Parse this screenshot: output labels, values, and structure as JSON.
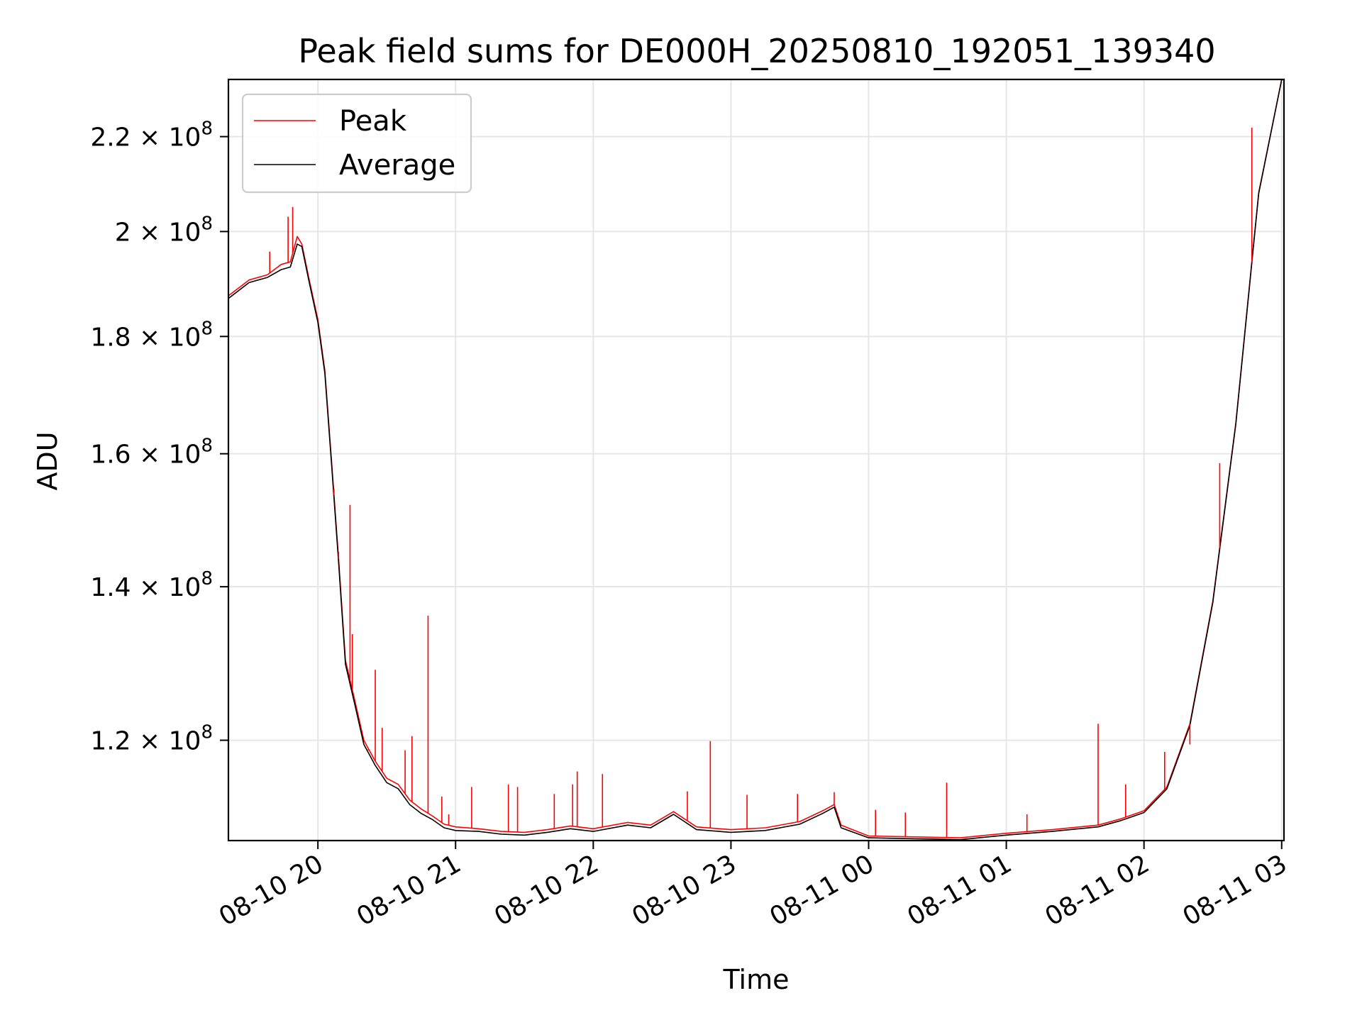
{
  "chart_data": {
    "type": "line",
    "title": "Peak field sums for DE000H_20250810_192051_139340",
    "xlabel": "Time",
    "ylabel": "ADU",
    "y_scale": "log",
    "grid": true,
    "legend_position": "top-left",
    "xlim": [
      "2025-08-10 19:21",
      "2025-08-11 03:01"
    ],
    "ylim": [
      108500000,
      233000000
    ],
    "x_ticks": [
      {
        "value": "2025-08-10 20:00",
        "label": "08-10 20"
      },
      {
        "value": "2025-08-10 21:00",
        "label": "08-10 21"
      },
      {
        "value": "2025-08-10 22:00",
        "label": "08-10 22"
      },
      {
        "value": "2025-08-10 23:00",
        "label": "08-10 23"
      },
      {
        "value": "2025-08-11 00:00",
        "label": "08-11 00"
      },
      {
        "value": "2025-08-11 01:00",
        "label": "08-11 01"
      },
      {
        "value": "2025-08-11 02:00",
        "label": "08-11 02"
      },
      {
        "value": "2025-08-11 03:00",
        "label": "08-11 03"
      }
    ],
    "y_ticks": [
      {
        "value": 120000000,
        "mantissa": "1.2",
        "base": "10",
        "exp": "8"
      },
      {
        "value": 140000000,
        "mantissa": "1.4",
        "base": "10",
        "exp": "8"
      },
      {
        "value": 160000000,
        "mantissa": "1.6",
        "base": "10",
        "exp": "8"
      },
      {
        "value": 180000000,
        "mantissa": "1.8",
        "base": "10",
        "exp": "8"
      },
      {
        "value": 200000000,
        "mantissa": "2",
        "base": "10",
        "exp": "8"
      },
      {
        "value": 220000000,
        "mantissa": "2.2",
        "base": "10",
        "exp": "8"
      }
    ],
    "series": [
      {
        "name": "Peak",
        "color": "#ff0000",
        "points": [
          [
            "2025-08-10 19:21",
            187500000
          ],
          [
            "2025-08-10 19:30",
            190500000
          ],
          [
            "2025-08-10 19:38",
            191500000
          ],
          [
            "2025-08-10 19:44",
            193500000
          ],
          [
            "2025-08-10 19:48",
            194000000
          ],
          [
            "2025-08-10 19:51",
            199000000
          ],
          [
            "2025-08-10 19:53",
            197500000
          ],
          [
            "2025-08-10 19:56",
            191000000
          ],
          [
            "2025-08-10 20:00",
            183000000
          ],
          [
            "2025-08-10 20:03",
            174000000
          ],
          [
            "2025-08-10 20:06",
            158500000
          ],
          [
            "2025-08-10 20:09",
            144000000
          ],
          [
            "2025-08-10 20:12",
            130000000
          ],
          [
            "2025-08-10 20:16",
            125000000
          ],
          [
            "2025-08-10 20:20",
            120000000
          ],
          [
            "2025-08-10 20:25",
            117500000
          ],
          [
            "2025-08-10 20:30",
            115500000
          ],
          [
            "2025-08-10 20:35",
            114800000
          ],
          [
            "2025-08-10 20:40",
            113000000
          ],
          [
            "2025-08-10 20:45",
            112000000
          ],
          [
            "2025-08-10 20:50",
            111200000
          ],
          [
            "2025-08-10 20:55",
            110300000
          ],
          [
            "2025-08-10 21:00",
            110000000
          ],
          [
            "2025-08-10 21:10",
            109800000
          ],
          [
            "2025-08-10 21:20",
            109500000
          ],
          [
            "2025-08-10 21:30",
            109400000
          ],
          [
            "2025-08-10 21:40",
            109700000
          ],
          [
            "2025-08-10 21:50",
            110100000
          ],
          [
            "2025-08-10 22:00",
            109800000
          ],
          [
            "2025-08-10 22:15",
            110500000
          ],
          [
            "2025-08-10 22:25",
            110200000
          ],
          [
            "2025-08-10 22:35",
            111700000
          ],
          [
            "2025-08-10 22:45",
            110000000
          ],
          [
            "2025-08-10 23:00",
            109700000
          ],
          [
            "2025-08-10 23:15",
            109900000
          ],
          [
            "2025-08-10 23:30",
            110600000
          ],
          [
            "2025-08-10 23:40",
            111800000
          ],
          [
            "2025-08-10 23:45",
            112500000
          ],
          [
            "2025-08-10 23:48",
            110200000
          ],
          [
            "2025-08-11 00:00",
            109000000
          ],
          [
            "2025-08-11 00:20",
            108900000
          ],
          [
            "2025-08-11 00:40",
            108800000
          ],
          [
            "2025-08-11 01:00",
            109300000
          ],
          [
            "2025-08-11 01:20",
            109700000
          ],
          [
            "2025-08-11 01:40",
            110200000
          ],
          [
            "2025-08-11 01:50",
            110900000
          ],
          [
            "2025-08-11 02:00",
            111800000
          ],
          [
            "2025-08-11 02:10",
            114500000
          ],
          [
            "2025-08-11 02:20",
            122000000
          ],
          [
            "2025-08-11 02:30",
            138000000
          ],
          [
            "2025-08-11 02:40",
            165000000
          ],
          [
            "2025-08-11 02:50",
            208000000
          ],
          [
            "2025-08-11 03:00",
            233000000
          ]
        ]
      },
      {
        "name": "Average",
        "color": "#000000",
        "points": [
          [
            "2025-08-10 19:21",
            187000000
          ],
          [
            "2025-08-10 19:30",
            190000000
          ],
          [
            "2025-08-10 19:38",
            191000000
          ],
          [
            "2025-08-10 19:44",
            192500000
          ],
          [
            "2025-08-10 19:48",
            193000000
          ],
          [
            "2025-08-10 19:51",
            197500000
          ],
          [
            "2025-08-10 19:53",
            197000000
          ],
          [
            "2025-08-10 19:56",
            190500000
          ],
          [
            "2025-08-10 20:00",
            182500000
          ],
          [
            "2025-08-10 20:03",
            173500000
          ],
          [
            "2025-08-10 20:06",
            158000000
          ],
          [
            "2025-08-10 20:09",
            143500000
          ],
          [
            "2025-08-10 20:12",
            129500000
          ],
          [
            "2025-08-10 20:16",
            124500000
          ],
          [
            "2025-08-10 20:20",
            119500000
          ],
          [
            "2025-08-10 20:25",
            117000000
          ],
          [
            "2025-08-10 20:30",
            115000000
          ],
          [
            "2025-08-10 20:35",
            114300000
          ],
          [
            "2025-08-10 20:40",
            112500000
          ],
          [
            "2025-08-10 20:45",
            111500000
          ],
          [
            "2025-08-10 20:50",
            110800000
          ],
          [
            "2025-08-10 20:55",
            109900000
          ],
          [
            "2025-08-10 21:00",
            109600000
          ],
          [
            "2025-08-10 21:10",
            109500000
          ],
          [
            "2025-08-10 21:20",
            109200000
          ],
          [
            "2025-08-10 21:30",
            109100000
          ],
          [
            "2025-08-10 21:40",
            109400000
          ],
          [
            "2025-08-10 21:50",
            109800000
          ],
          [
            "2025-08-10 22:00",
            109500000
          ],
          [
            "2025-08-10 22:15",
            110200000
          ],
          [
            "2025-08-10 22:25",
            109900000
          ],
          [
            "2025-08-10 22:35",
            111400000
          ],
          [
            "2025-08-10 22:45",
            109700000
          ],
          [
            "2025-08-10 23:00",
            109400000
          ],
          [
            "2025-08-10 23:15",
            109600000
          ],
          [
            "2025-08-10 23:30",
            110300000
          ],
          [
            "2025-08-10 23:40",
            111500000
          ],
          [
            "2025-08-10 23:45",
            112200000
          ],
          [
            "2025-08-10 23:48",
            109900000
          ],
          [
            "2025-08-11 00:00",
            108800000
          ],
          [
            "2025-08-11 00:20",
            108700000
          ],
          [
            "2025-08-11 00:40",
            108600000
          ],
          [
            "2025-08-11 01:00",
            109100000
          ],
          [
            "2025-08-11 01:20",
            109500000
          ],
          [
            "2025-08-11 01:40",
            110000000
          ],
          [
            "2025-08-11 01:50",
            110700000
          ],
          [
            "2025-08-11 02:00",
            111600000
          ],
          [
            "2025-08-11 02:10",
            114300000
          ],
          [
            "2025-08-11 02:20",
            121800000
          ],
          [
            "2025-08-11 02:30",
            137800000
          ],
          [
            "2025-08-11 02:40",
            164800000
          ],
          [
            "2025-08-11 02:50",
            207800000
          ],
          [
            "2025-08-11 03:00",
            233000000
          ]
        ]
      }
    ],
    "peak_spikes": [
      [
        "2025-08-10 19:39",
        196000000
      ],
      [
        "2025-08-10 19:47",
        203000000
      ],
      [
        "2025-08-10 19:49",
        205000000
      ],
      [
        "2025-08-10 20:07",
        154500000
      ],
      [
        "2025-08-10 20:09",
        145000000
      ],
      [
        "2025-08-10 20:14",
        152000000
      ],
      [
        "2025-08-10 20:15",
        133500000
      ],
      [
        "2025-08-10 20:22",
        118800000
      ],
      [
        "2025-08-10 20:25",
        128800000
      ],
      [
        "2025-08-10 20:28",
        121500000
      ],
      [
        "2025-08-10 20:38",
        118800000
      ],
      [
        "2025-08-10 20:41",
        120500000
      ],
      [
        "2025-08-10 20:48",
        136000000
      ],
      [
        "2025-08-10 20:54",
        113400000
      ],
      [
        "2025-08-10 20:57",
        111400000
      ],
      [
        "2025-08-10 21:07",
        114500000
      ],
      [
        "2025-08-10 21:23",
        114800000
      ],
      [
        "2025-08-10 21:27",
        114500000
      ],
      [
        "2025-08-10 21:43",
        113700000
      ],
      [
        "2025-08-10 21:51",
        114800000
      ],
      [
        "2025-08-10 21:53",
        116300000
      ],
      [
        "2025-08-10 22:04",
        116000000
      ],
      [
        "2025-08-10 22:41",
        114000000
      ],
      [
        "2025-08-10 22:51",
        119900000
      ],
      [
        "2025-08-10 23:07",
        113600000
      ],
      [
        "2025-08-10 23:29",
        113700000
      ],
      [
        "2025-08-10 23:45",
        113900000
      ],
      [
        "2025-08-11 00:03",
        111900000
      ],
      [
        "2025-08-11 00:16",
        111600000
      ],
      [
        "2025-08-11 00:34",
        115000000
      ],
      [
        "2025-08-11 01:09",
        111400000
      ],
      [
        "2025-08-11 01:40",
        122000000
      ],
      [
        "2025-08-11 01:52",
        114800000
      ],
      [
        "2025-08-11 02:09",
        118600000
      ],
      [
        "2025-08-11 02:20",
        119500000
      ],
      [
        "2025-08-11 02:33",
        158500000
      ],
      [
        "2025-08-11 02:47",
        222000000
      ]
    ],
    "legend": [
      {
        "label": "Peak",
        "color": "#ff0000"
      },
      {
        "label": "Average",
        "color": "#000000"
      }
    ]
  }
}
